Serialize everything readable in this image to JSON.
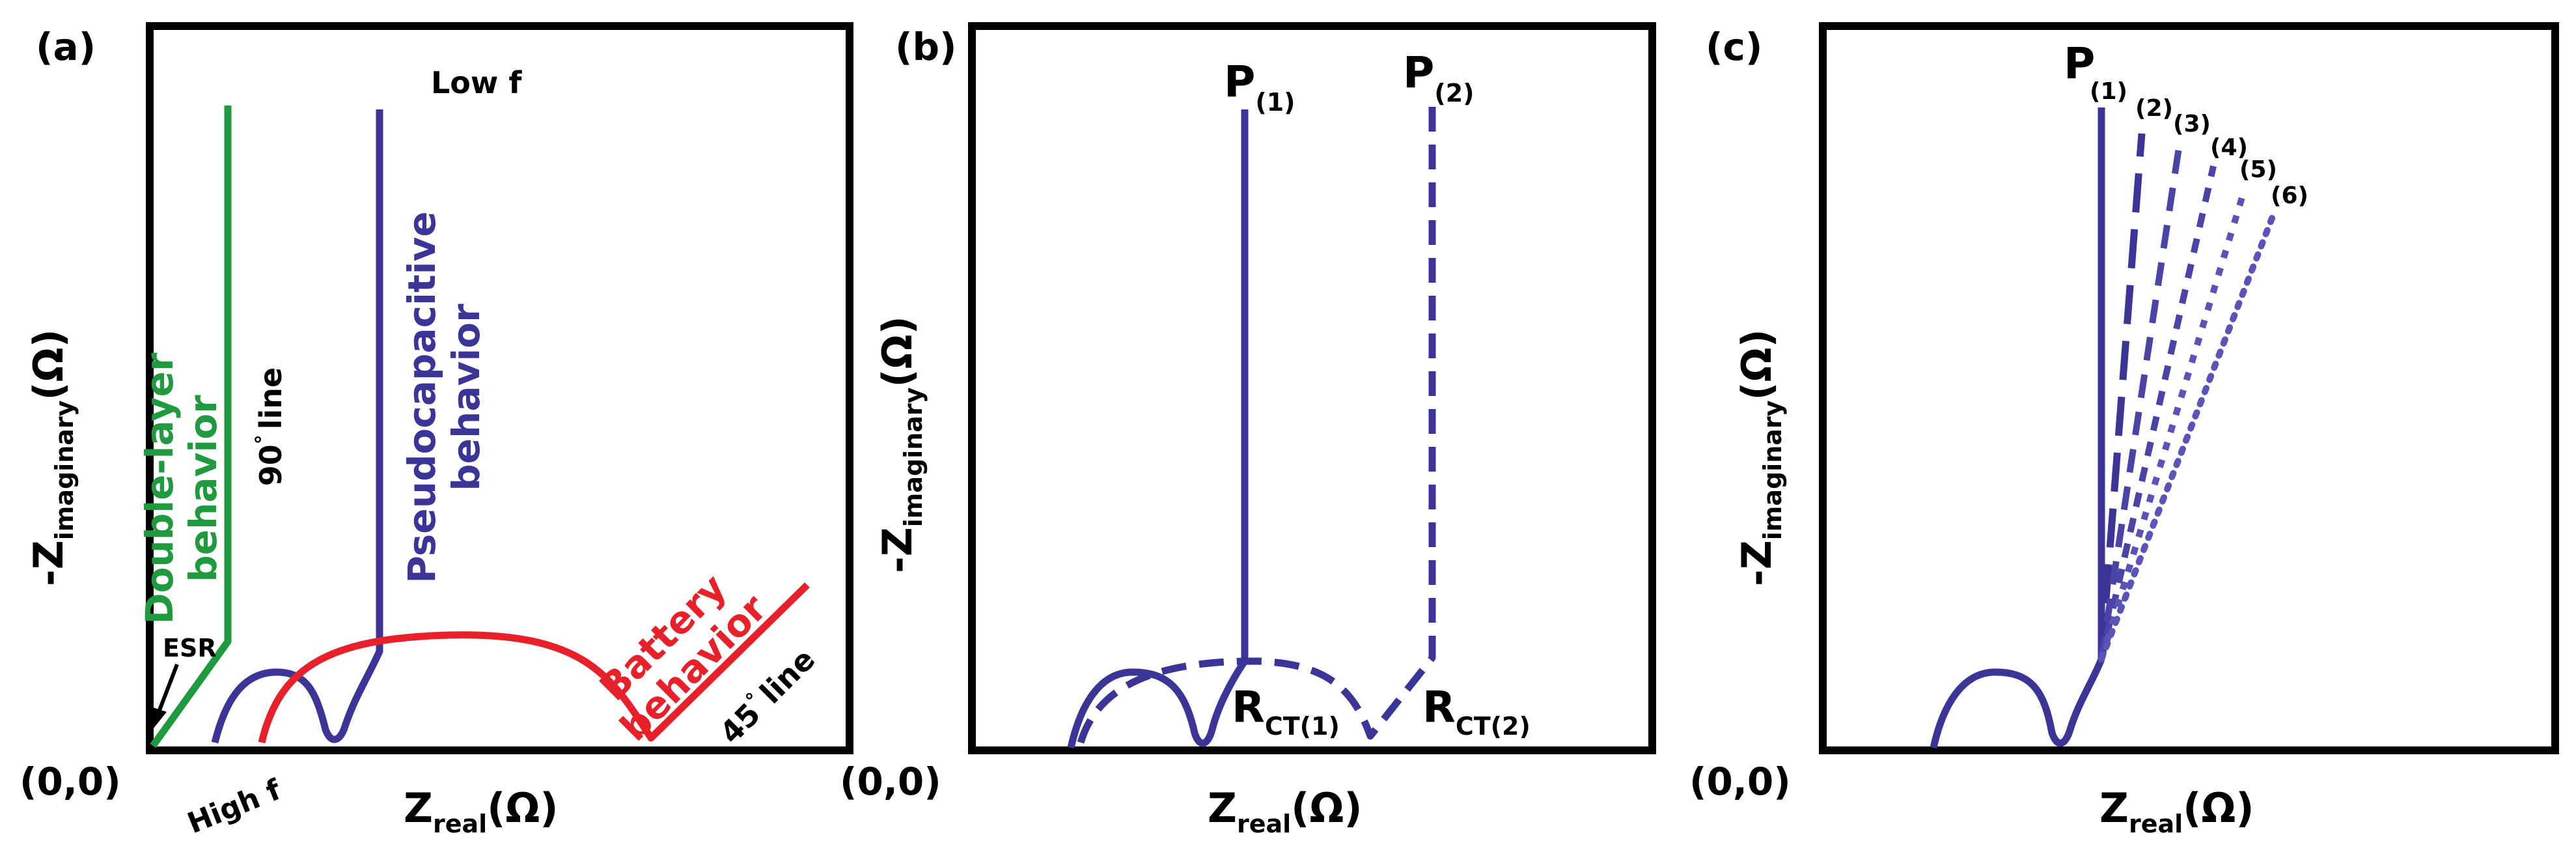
{
  "colors": {
    "frame": "#000000",
    "double_layer": "#1f9a3f",
    "pseudocapacitive": "#3b3598",
    "battery": "#e8202a",
    "annotation": "#000000"
  },
  "panels": [
    {
      "id": "a",
      "label": "(a)",
      "origin_label": "(0,0)",
      "x_axis": {
        "main": "Z",
        "sub": "real",
        "unit": "(Ω)"
      },
      "y_axis": {
        "main": "-Z",
        "sub": "imaginary",
        "unit": "(Ω)"
      },
      "annotations": {
        "low_f": "Low f",
        "high_f": "High f",
        "esr": "ESR",
        "ninety": "90",
        "ninety_suffix": "line",
        "fortyfive": "45",
        "fortyfive_suffix": "line",
        "degree": "°"
      },
      "behaviors": {
        "double_layer": [
          "Double-layer",
          "behavior"
        ],
        "pseudocapacitive": [
          "Pseudocapacitive",
          "behavior"
        ],
        "battery": [
          "Battery",
          "behavior"
        ]
      }
    },
    {
      "id": "b",
      "label": "(b)",
      "origin_label": "(0,0)",
      "x_axis": {
        "main": "Z",
        "sub": "real",
        "unit": "(Ω)"
      },
      "y_axis": {
        "main": "-Z",
        "sub": "imaginary",
        "unit": "(Ω)"
      },
      "points": {
        "p1": {
          "main": "P",
          "sub": "(1)"
        },
        "p2": {
          "main": "P",
          "sub": "(2)"
        },
        "rct1": {
          "main": "R",
          "sub": "CT(1)"
        },
        "rct2": {
          "main": "R",
          "sub": "CT(2)"
        }
      }
    },
    {
      "id": "c",
      "label": "(c)",
      "origin_label": "(0,0)",
      "x_axis": {
        "main": "Z",
        "sub": "real",
        "unit": "(Ω)"
      },
      "y_axis": {
        "main": "-Z",
        "sub": "imaginary",
        "unit": "(Ω)"
      },
      "p_main": "P",
      "series_labels": [
        "(1)",
        "(2)",
        "(3)",
        "(4)",
        "(5)",
        "(6)"
      ]
    }
  ]
}
